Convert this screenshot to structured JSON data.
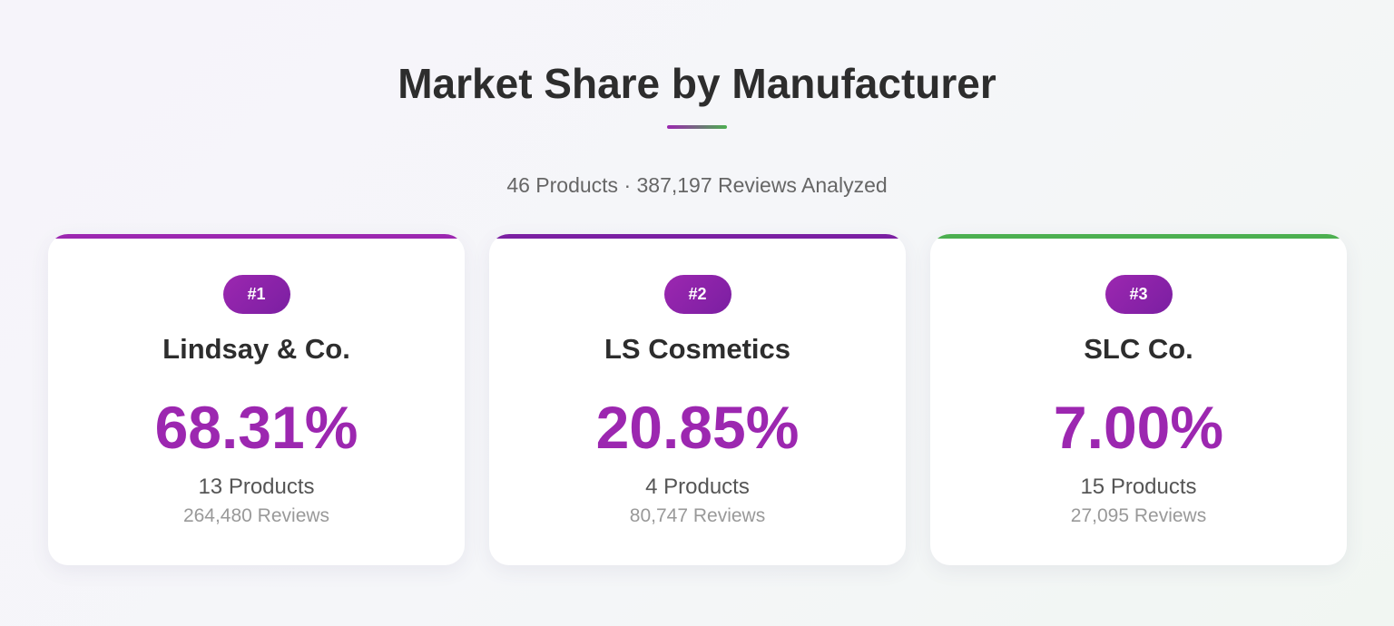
{
  "header": {
    "title": "Market Share by Manufacturer",
    "subtitle": "46 Products · 387,197 Reviews Analyzed"
  },
  "colors": {
    "purple": "#9c27b0",
    "dark_purple": "#7b1fa2",
    "green": "#4caf50"
  },
  "cards": [
    {
      "rank": "#1",
      "name": "Lindsay & Co.",
      "share": "68.31%",
      "products": "13 Products",
      "reviews": "264,480 Reviews",
      "bar_color": "#9c27b0"
    },
    {
      "rank": "#2",
      "name": "LS Cosmetics",
      "share": "20.85%",
      "products": "4 Products",
      "reviews": "80,747 Reviews",
      "bar_color": "#7b1fa2"
    },
    {
      "rank": "#3",
      "name": "SLC Co.",
      "share": "7.00%",
      "products": "15 Products",
      "reviews": "27,095 Reviews",
      "bar_color": "#4caf50"
    }
  ]
}
